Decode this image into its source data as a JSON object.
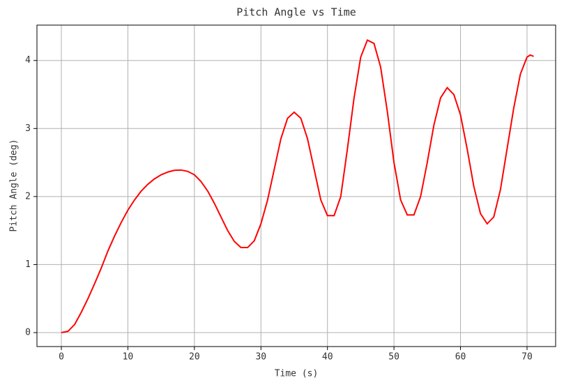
{
  "chart_data": {
    "type": "line",
    "title": "Pitch Angle vs Time",
    "x_label": "Time (s)",
    "y_label": "Pitch Angle (deg)",
    "x": [
      0,
      1,
      2,
      3,
      4,
      5,
      6,
      7,
      8,
      9,
      10,
      11,
      12,
      13,
      14,
      15,
      16,
      17,
      18,
      19,
      20,
      21,
      22,
      23,
      24,
      25,
      26,
      27,
      28,
      29,
      30,
      31,
      32,
      33,
      34,
      35,
      36,
      37,
      38,
      39,
      40,
      41,
      42,
      43,
      44,
      45,
      46,
      47,
      48,
      49,
      50,
      51,
      52,
      53,
      54,
      55,
      56,
      57,
      58,
      59,
      60,
      61,
      62,
      63,
      64,
      65,
      66,
      67,
      68,
      69,
      70,
      70.5,
      71
    ],
    "series": [
      {
        "name": "Pitch Angle",
        "color": "#ff0000",
        "values": [
          0,
          0.02,
          0.12,
          0.3,
          0.5,
          0.72,
          0.95,
          1.2,
          1.42,
          1.62,
          1.8,
          1.95,
          2.08,
          2.18,
          2.26,
          2.32,
          2.36,
          2.385,
          2.39,
          2.37,
          2.32,
          2.22,
          2.08,
          1.9,
          1.7,
          1.5,
          1.34,
          1.25,
          1.25,
          1.35,
          1.6,
          1.95,
          2.4,
          2.85,
          3.15,
          3.24,
          3.15,
          2.85,
          2.4,
          1.95,
          1.72,
          1.72,
          2.0,
          2.7,
          3.45,
          4.05,
          4.3,
          4.25,
          3.9,
          3.25,
          2.5,
          1.95,
          1.73,
          1.73,
          2.0,
          2.5,
          3.05,
          3.45,
          3.6,
          3.5,
          3.2,
          2.7,
          2.15,
          1.75,
          1.6,
          1.7,
          2.1,
          2.7,
          3.3,
          3.8,
          4.05,
          4.08,
          4.06
        ]
      }
    ],
    "xlim": [
      -3.67,
      74.3
    ],
    "ylim": [
      -0.205,
      4.52
    ],
    "xticks": [
      0,
      10,
      20,
      30,
      40,
      50,
      60,
      70
    ],
    "yticks": [
      0,
      1,
      2,
      3,
      4
    ],
    "grid": true
  }
}
